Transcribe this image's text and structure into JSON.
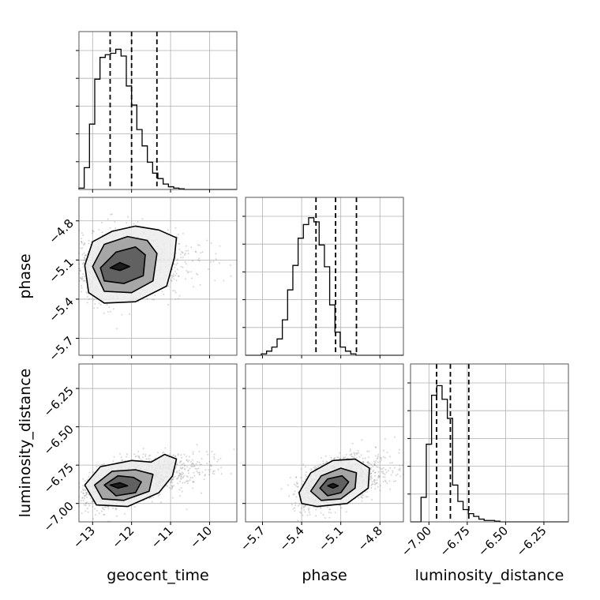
{
  "chart_data": {
    "type": "corner",
    "parameters": [
      "geocent_time",
      "phase",
      "luminosity_distance"
    ],
    "axes": {
      "geocent_time": {
        "range": [
          -13.35,
          -9.3
        ],
        "ticks": [
          -13,
          -12,
          -11,
          -10
        ],
        "tick_labels": [
          "−13",
          "−12",
          "−11",
          "−10"
        ]
      },
      "phase": {
        "range": [
          -5.83,
          -4.62
        ],
        "ticks": [
          -5.7,
          -5.4,
          -5.1,
          -4.8
        ],
        "tick_labels": [
          "−5.7",
          "−5.4",
          "−5.1",
          "−4.8"
        ]
      },
      "luminosity_distance": {
        "range": [
          -7.12,
          -6.09
        ],
        "ticks": [
          -7.0,
          -6.75,
          -6.5,
          -6.25
        ],
        "tick_labels": [
          "−7.00",
          "−6.75",
          "−6.50",
          "−6.25"
        ]
      }
    },
    "grid": true,
    "quantile_lines": {
      "geocent_time": [
        -12.55,
        -12.0,
        -11.35
      ],
      "phase": [
        -5.29,
        -5.14,
        -4.98
      ],
      "luminosity_distance": [
        -6.95,
        -6.86,
        -6.74
      ]
    },
    "histograms": {
      "geocent_time": {
        "bin_start": -13.35,
        "bin_width": 0.135,
        "values": [
          0.01,
          0.16,
          0.48,
          0.81,
          0.97,
          0.99,
          1.0,
          1.03,
          0.98,
          0.76,
          0.62,
          0.44,
          0.32,
          0.2,
          0.12,
          0.08,
          0.04,
          0.02,
          0.01,
          0.005,
          0.0,
          0.0,
          0.0,
          0.0,
          0.0,
          0.0,
          0.0,
          0.0,
          0.0,
          0.0
        ]
      },
      "phase": {
        "bin_start": -5.83,
        "bin_width": 0.0403,
        "values": [
          0.0,
          0.0,
          0.0,
          0.01,
          0.03,
          0.06,
          0.12,
          0.26,
          0.48,
          0.66,
          0.86,
          0.96,
          1.01,
          0.98,
          0.81,
          0.65,
          0.37,
          0.17,
          0.06,
          0.03,
          0.01,
          0.0,
          0.0,
          0.0,
          0.0,
          0.0,
          0.0,
          0.0,
          0.0,
          0.0
        ]
      },
      "luminosity_distance": {
        "bin_start": -7.12,
        "bin_width": 0.0343,
        "values": [
          0.0,
          0.0,
          0.18,
          0.57,
          0.93,
          1.0,
          0.9,
          0.76,
          0.27,
          0.15,
          0.09,
          0.06,
          0.04,
          0.02,
          0.01,
          0.01,
          0.005,
          0.0,
          0.0,
          0.0,
          0.0,
          0.0,
          0.0,
          0.0,
          0.0,
          0.0,
          0.0,
          0.0,
          0.0,
          0.0
        ]
      }
    },
    "contours": {
      "phase_vs_geocent_time": [
        [
          [
            -12.55,
            -5.16
          ],
          [
            -12.3,
            -5.12
          ],
          [
            -12.05,
            -5.15
          ],
          [
            -12.3,
            -5.18
          ]
        ],
        [
          [
            -12.8,
            -5.16
          ],
          [
            -12.4,
            -5.04
          ],
          [
            -11.9,
            -5.0
          ],
          [
            -11.65,
            -5.06
          ],
          [
            -11.7,
            -5.22
          ],
          [
            -12.2,
            -5.28
          ],
          [
            -12.7,
            -5.26
          ]
        ],
        [
          [
            -13.0,
            -5.15
          ],
          [
            -12.7,
            -4.98
          ],
          [
            -12.1,
            -4.92
          ],
          [
            -11.6,
            -4.95
          ],
          [
            -11.35,
            -5.05
          ],
          [
            -11.45,
            -5.26
          ],
          [
            -12.0,
            -5.35
          ],
          [
            -12.7,
            -5.34
          ]
        ],
        [
          [
            -13.2,
            -5.14
          ],
          [
            -13.0,
            -4.96
          ],
          [
            -12.5,
            -4.88
          ],
          [
            -11.9,
            -4.84
          ],
          [
            -11.3,
            -4.87
          ],
          [
            -10.85,
            -4.93
          ],
          [
            -10.9,
            -5.08
          ],
          [
            -11.1,
            -5.3
          ],
          [
            -11.9,
            -5.42
          ],
          [
            -12.7,
            -5.43
          ],
          [
            -13.1,
            -5.35
          ]
        ]
      ],
      "luminosity_distance_vs_geocent_time": [
        [
          [
            -12.55,
            -6.88
          ],
          [
            -12.3,
            -6.865
          ],
          [
            -12.1,
            -6.885
          ],
          [
            -12.35,
            -6.9
          ]
        ],
        [
          [
            -12.7,
            -6.88
          ],
          [
            -12.35,
            -6.82
          ],
          [
            -11.95,
            -6.83
          ],
          [
            -11.75,
            -6.86
          ],
          [
            -11.9,
            -6.93
          ],
          [
            -12.4,
            -6.95
          ]
        ],
        [
          [
            -12.95,
            -6.88
          ],
          [
            -12.5,
            -6.79
          ],
          [
            -11.9,
            -6.78
          ],
          [
            -11.45,
            -6.81
          ],
          [
            -11.55,
            -6.92
          ],
          [
            -12.2,
            -6.98
          ],
          [
            -12.75,
            -6.97
          ]
        ],
        [
          [
            -13.2,
            -6.88
          ],
          [
            -12.8,
            -6.76
          ],
          [
            -12.0,
            -6.72
          ],
          [
            -11.5,
            -6.73
          ],
          [
            -11.15,
            -6.68
          ],
          [
            -10.85,
            -6.71
          ],
          [
            -10.95,
            -6.82
          ],
          [
            -11.3,
            -6.93
          ],
          [
            -12.1,
            -7.02
          ],
          [
            -12.9,
            -7.01
          ]
        ]
      ],
      "luminosity_distance_vs_phase": [
        [
          [
            -5.2,
            -6.885
          ],
          [
            -5.16,
            -6.87
          ],
          [
            -5.12,
            -6.885
          ],
          [
            -5.16,
            -6.9
          ]
        ],
        [
          [
            -5.26,
            -6.9
          ],
          [
            -5.2,
            -6.84
          ],
          [
            -5.09,
            -6.82
          ],
          [
            -5.04,
            -6.86
          ],
          [
            -5.1,
            -6.93
          ],
          [
            -5.2,
            -6.95
          ]
        ],
        [
          [
            -5.33,
            -6.92
          ],
          [
            -5.25,
            -6.82
          ],
          [
            -5.1,
            -6.77
          ],
          [
            -4.98,
            -6.8
          ],
          [
            -4.99,
            -6.9
          ],
          [
            -5.1,
            -6.97
          ],
          [
            -5.25,
            -6.98
          ]
        ],
        [
          [
            -5.42,
            -6.93
          ],
          [
            -5.33,
            -6.8
          ],
          [
            -5.16,
            -6.72
          ],
          [
            -4.99,
            -6.71
          ],
          [
            -4.88,
            -6.77
          ],
          [
            -4.89,
            -6.9
          ],
          [
            -5.05,
            -7.0
          ],
          [
            -5.28,
            -7.02
          ],
          [
            -5.4,
            -7.0
          ]
        ]
      ]
    }
  }
}
